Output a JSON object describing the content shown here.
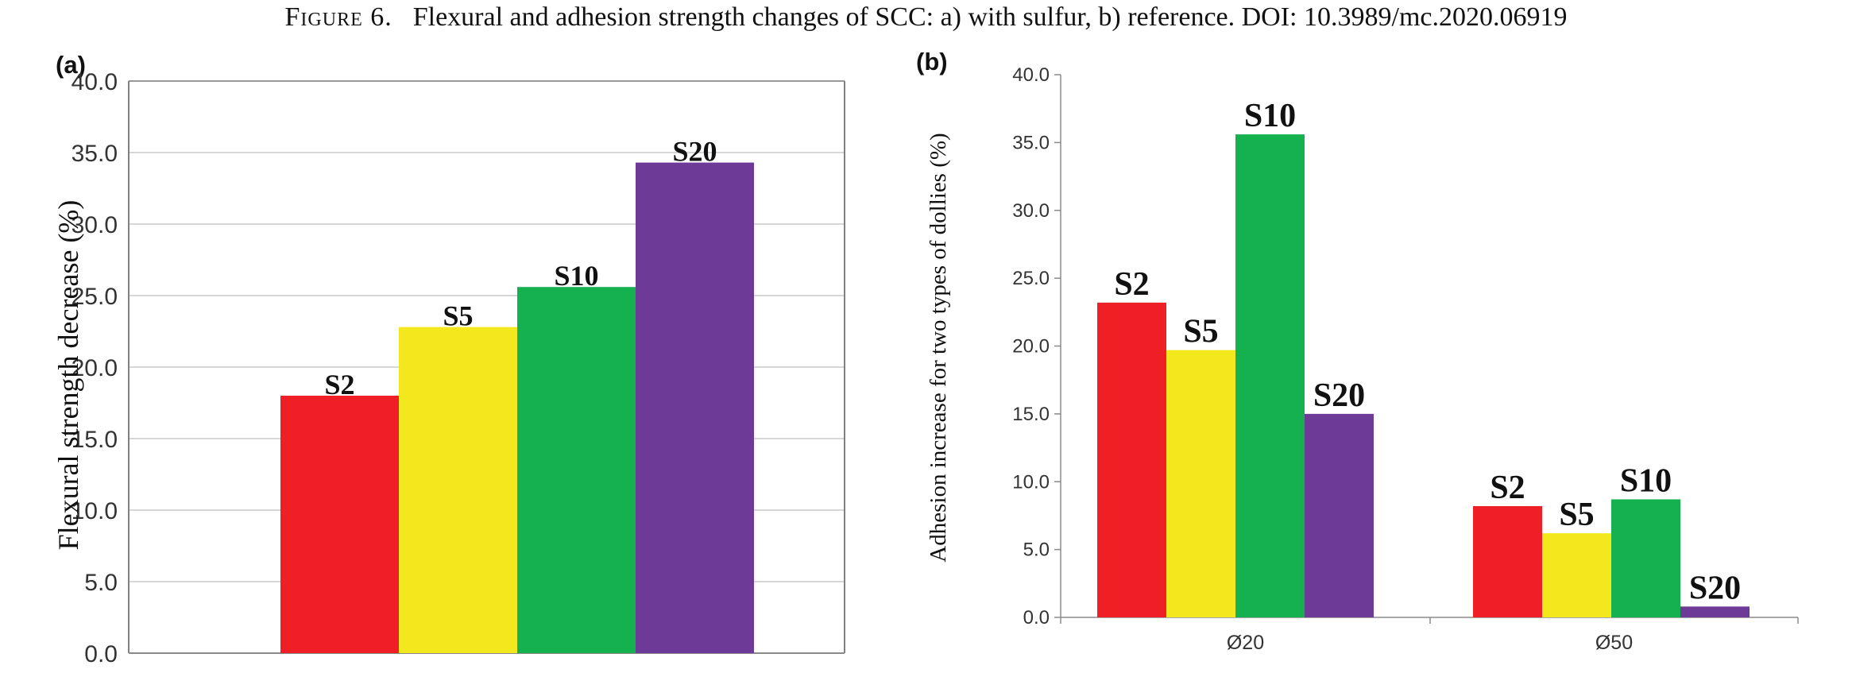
{
  "caption": {
    "figure_label": "Figure 6.",
    "text": "Flexural and adhesion strength changes of SCC: a) with sulfur, b) reference. DOI: 10.3989/mc.2020.06919"
  },
  "colors": {
    "S2": "#ee2026",
    "S5": "#f2e81d",
    "S10": "#15b14e",
    "S20": "#6e3a97",
    "gridline": "#c8c8c8",
    "axis": "#8a8a8a",
    "frame": "#808080"
  },
  "chart_data": [
    {
      "panel_label": "(a)",
      "type": "bar",
      "categories": [
        "S2",
        "S5",
        "S10",
        "S20"
      ],
      "values": [
        18.0,
        22.8,
        25.6,
        34.3
      ],
      "bar_labels": [
        "S2",
        "S5",
        "S10",
        "S20"
      ],
      "ylabel": "Flexural strength decrease (%)",
      "xlabel": "",
      "ylim": [
        0,
        40
      ],
      "yticks": [
        "0.0",
        "5.0",
        "10.0",
        "15.0",
        "20.0",
        "25.0",
        "30.0",
        "35.0",
        "40.0"
      ],
      "grid": true,
      "legend": "none"
    },
    {
      "panel_label": "(b)",
      "type": "bar",
      "categories": [
        "Ø20",
        "Ø50"
      ],
      "series": [
        {
          "name": "S2",
          "values": [
            23.2,
            8.2
          ]
        },
        {
          "name": "S5",
          "values": [
            19.7,
            6.2
          ]
        },
        {
          "name": "S10",
          "values": [
            35.6,
            8.7
          ]
        },
        {
          "name": "S20",
          "values": [
            15.0,
            0.8
          ]
        }
      ],
      "ylabel": "Adhesion increase for two types of dollies (%)",
      "xlabel": "",
      "ylim": [
        0,
        40
      ],
      "yticks": [
        "0.0",
        "5.0",
        "10.0",
        "15.0",
        "20.0",
        "25.0",
        "30.0",
        "35.0",
        "40.0"
      ],
      "grid": false,
      "legend": "none"
    }
  ]
}
